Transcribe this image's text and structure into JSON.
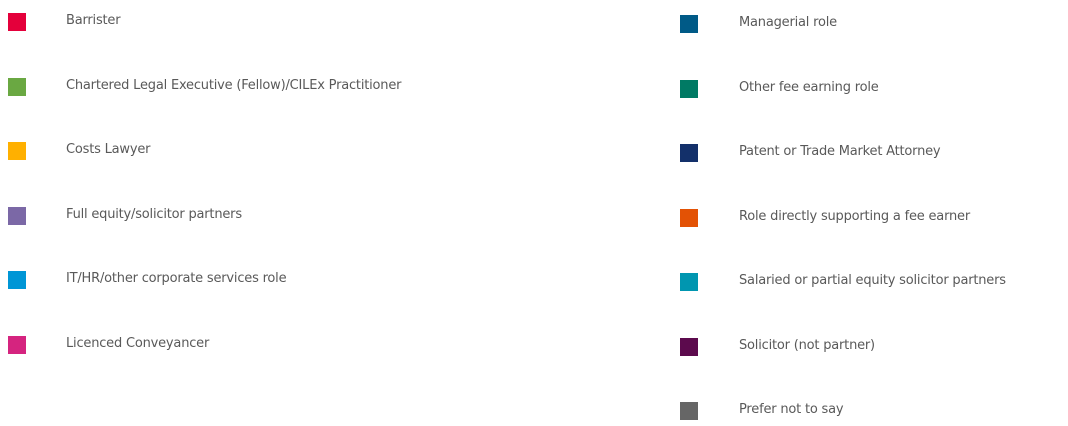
{
  "legend": {
    "columns": [
      [
        {
          "label": "Barrister",
          "color": "#e4003b"
        },
        {
          "label": "Chartered Legal Executive (Fellow)/CILEx Practitioner",
          "color": "#6aa842"
        },
        {
          "label": "Costs Lawyer",
          "color": "#ffb000"
        },
        {
          "label": "Full equity/solicitor partners",
          "color": "#7b68a6"
        },
        {
          "label": "IT/HR/other corporate services role",
          "color": "#0096d6"
        },
        {
          "label": "Licenced Conveyancer",
          "color": "#d5247f"
        }
      ],
      [
        {
          "label": "Managerial role",
          "color": "#005a87"
        },
        {
          "label": "Other fee earning role",
          "color": "#007a64"
        },
        {
          "label": "Patent or Trade Market Attorney",
          "color": "#13306a"
        },
        {
          "label": "Role directly supporting a fee earner",
          "color": "#e35205"
        },
        {
          "label": "Salaried or partial equity solicitor partners",
          "color": "#0096b0"
        },
        {
          "label": "Solicitor (not partner)",
          "color": "#5c0a4d"
        },
        {
          "label": "Prefer not to say",
          "color": "#666666"
        }
      ]
    ]
  }
}
